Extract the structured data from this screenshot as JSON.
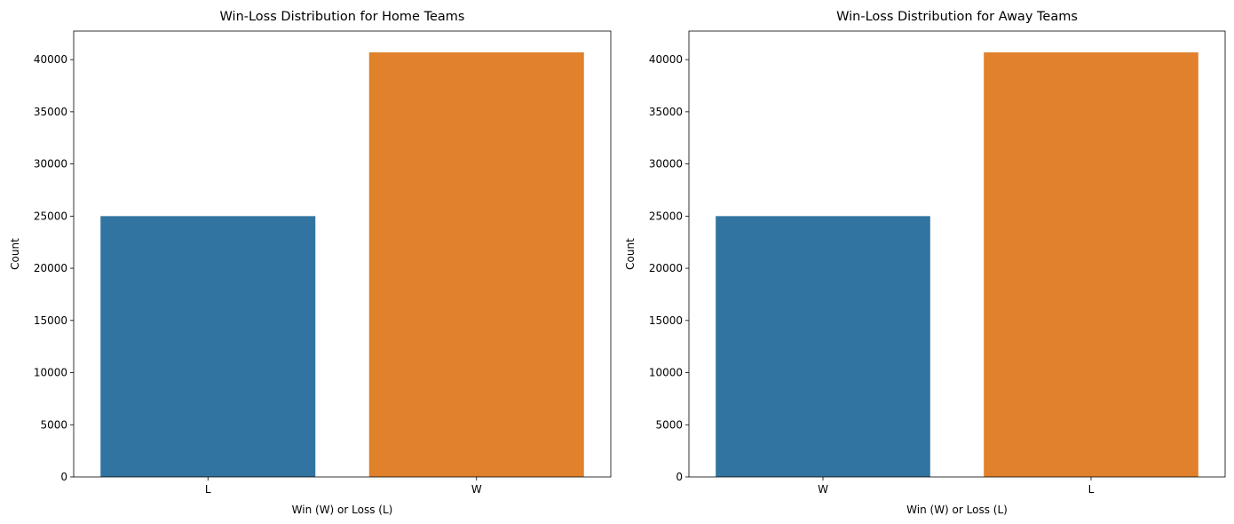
{
  "chart_data": [
    {
      "type": "bar",
      "title": "Win-Loss Distribution for Home Teams",
      "xlabel": "Win (W) or Loss (L)",
      "ylabel": "Count",
      "categories": [
        "L",
        "W"
      ],
      "values": [
        25000,
        40700
      ],
      "colors": [
        "#3274a1",
        "#e1812c"
      ],
      "ylim": [
        0,
        42735
      ],
      "yticks": [
        0,
        5000,
        10000,
        15000,
        20000,
        25000,
        30000,
        35000,
        40000
      ],
      "grid": false
    },
    {
      "type": "bar",
      "title": "Win-Loss Distribution for Away Teams",
      "xlabel": "Win (W) or Loss (L)",
      "ylabel": "Count",
      "categories": [
        "W",
        "L"
      ],
      "values": [
        25000,
        40700
      ],
      "colors": [
        "#3274a1",
        "#e1812c"
      ],
      "ylim": [
        0,
        42735
      ],
      "yticks": [
        0,
        5000,
        10000,
        15000,
        20000,
        25000,
        30000,
        35000,
        40000
      ],
      "grid": false
    }
  ]
}
